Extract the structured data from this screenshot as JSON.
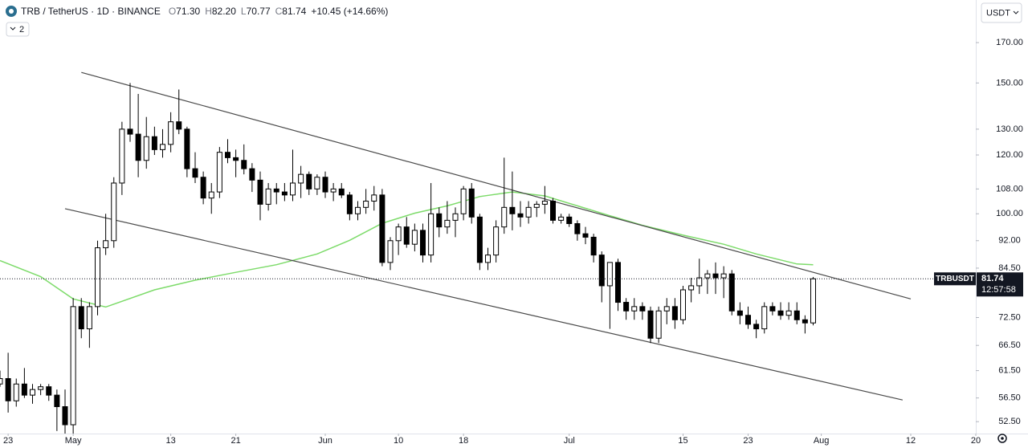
{
  "header": {
    "symbol": "TRB / TetherUS · 1D · BINANCE",
    "ohlc": [
      {
        "key": "O",
        "value": "71.30"
      },
      {
        "key": "H",
        "value": "82.20"
      },
      {
        "key": "L",
        "value": "70.77"
      },
      {
        "key": "C",
        "value": "81.74"
      }
    ],
    "change": "+10.45 (+14.66%)",
    "indicators": "2",
    "currency": "USDT"
  },
  "chart_data": {
    "type": "candlestick",
    "log_scale": true,
    "grid": false,
    "up_color": "#ffffff",
    "down_color": "#000000",
    "wick_color": "#000000",
    "xlim": [
      "04-22",
      "08-20"
    ],
    "xticks": [
      {
        "value": "04-23",
        "label": "23"
      },
      {
        "value": "05-01",
        "label": "May"
      },
      {
        "value": "05-13",
        "label": "13"
      },
      {
        "value": "05-21",
        "label": "21"
      },
      {
        "value": "06-01",
        "label": "Jun"
      },
      {
        "value": "06-10",
        "label": "10"
      },
      {
        "value": "06-18",
        "label": "18"
      },
      {
        "value": "07-01",
        "label": "Jul"
      },
      {
        "value": "07-15",
        "label": "15"
      },
      {
        "value": "07-23",
        "label": "23"
      },
      {
        "value": "08-01",
        "label": "Aug"
      },
      {
        "value": "08-12",
        "label": "12"
      },
      {
        "value": "08-20",
        "label": "20"
      }
    ],
    "ylim": [
      50.6,
      194
    ],
    "yticks": [
      {
        "value": 52.5,
        "label": "52.50"
      },
      {
        "value": 56.5,
        "label": "56.50"
      },
      {
        "value": 61.5,
        "label": "61.50"
      },
      {
        "value": 66.5,
        "label": "66.50"
      },
      {
        "value": 72.5,
        "label": "72.50"
      },
      {
        "value": 84.5,
        "label": "84.50"
      },
      {
        "value": 92,
        "label": "92.00"
      },
      {
        "value": 100,
        "label": "100.00"
      },
      {
        "value": 108,
        "label": "108.00"
      },
      {
        "value": 120,
        "label": "120.00"
      },
      {
        "value": 130,
        "label": "130.00"
      },
      {
        "value": 150,
        "label": "150.00"
      },
      {
        "value": 170,
        "label": "170.00"
      }
    ],
    "x": [
      "04-22",
      "04-23",
      "04-24",
      "04-25",
      "04-26",
      "04-27",
      "04-28",
      "04-29",
      "04-30",
      "05-01",
      "05-02",
      "05-03",
      "05-04",
      "05-05",
      "05-06",
      "05-07",
      "05-08",
      "05-09",
      "05-10",
      "05-11",
      "05-12",
      "05-13",
      "05-14",
      "05-15",
      "05-16",
      "05-17",
      "05-18",
      "05-19",
      "05-20",
      "05-21",
      "05-22",
      "05-23",
      "05-24",
      "05-25",
      "05-26",
      "05-27",
      "05-28",
      "05-29",
      "05-30",
      "05-31",
      "06-01",
      "06-02",
      "06-03",
      "06-04",
      "06-05",
      "06-06",
      "06-07",
      "06-08",
      "06-09",
      "06-10",
      "06-11",
      "06-12",
      "06-13",
      "06-14",
      "06-15",
      "06-16",
      "06-17",
      "06-18",
      "06-19",
      "06-20",
      "06-21",
      "06-22",
      "06-23",
      "06-24",
      "06-25",
      "06-26",
      "06-27",
      "06-28",
      "06-29",
      "06-30",
      "07-01",
      "07-02",
      "07-03",
      "07-04",
      "07-05",
      "07-06",
      "07-07",
      "07-08",
      "07-09",
      "07-10",
      "07-11",
      "07-12",
      "07-13",
      "07-14",
      "07-15",
      "07-16",
      "07-17",
      "07-18",
      "07-19",
      "07-20",
      "07-21",
      "07-22",
      "07-23",
      "07-24",
      "07-25",
      "07-26",
      "07-27",
      "07-28",
      "07-29",
      "07-30",
      "07-31"
    ],
    "open": [
      59,
      60,
      56,
      59,
      57,
      58,
      58.5,
      57,
      55,
      52,
      75,
      70,
      75,
      90,
      92,
      110,
      130,
      128,
      118,
      127,
      122,
      124,
      133,
      130,
      115,
      112,
      105,
      107,
      121,
      119,
      118,
      115,
      111,
      103,
      108,
      107,
      106,
      110,
      113,
      108,
      112,
      107,
      108,
      106,
      100,
      102,
      104,
      106,
      86,
      92,
      96,
      91,
      95,
      88,
      100,
      96,
      98,
      100,
      108,
      99,
      86,
      88,
      96,
      102,
      100,
      99,
      102,
      103,
      104,
      98,
      99,
      97,
      94,
      93,
      88,
      80,
      86,
      76,
      74,
      75,
      74,
      68,
      74,
      75,
      72,
      79,
      80,
      82,
      83,
      82,
      83,
      74,
      73,
      71,
      70,
      75,
      74,
      73,
      74,
      72,
      71.3
    ],
    "high": [
      61.5,
      65,
      60,
      62,
      59,
      59,
      59,
      58,
      58,
      77,
      77,
      76,
      92,
      100,
      112,
      133,
      150,
      145,
      135,
      131,
      130,
      137,
      147,
      131,
      121,
      114,
      110,
      123,
      126,
      122,
      124,
      117,
      114,
      110,
      110,
      110,
      122,
      116,
      114,
      113,
      114,
      110,
      110,
      107,
      104,
      108,
      109,
      108,
      93,
      97,
      99,
      97,
      97,
      110,
      102,
      104,
      102,
      109,
      110,
      100,
      90,
      98,
      119,
      114,
      104,
      104,
      104,
      109,
      105,
      100,
      100,
      98,
      96,
      94,
      89,
      86,
      87,
      77,
      77,
      76,
      75,
      75,
      77,
      77,
      80,
      82,
      87,
      84,
      86,
      85,
      84,
      76,
      75,
      72,
      76,
      76,
      76,
      76,
      76,
      73,
      82.2
    ],
    "low": [
      58.5,
      54,
      55,
      56.5,
      55.5,
      57,
      56,
      51,
      50,
      50,
      68,
      66,
      73,
      88,
      90,
      106,
      125,
      112,
      115,
      120,
      119,
      121,
      128,
      112,
      110,
      103,
      100,
      105,
      117,
      112,
      113,
      107,
      98,
      101,
      103,
      104,
      104,
      105,
      106,
      106,
      105,
      104,
      105,
      98,
      98,
      100,
      101,
      85,
      84,
      88,
      90,
      89,
      86,
      86,
      93,
      94,
      93,
      98,
      97,
      84,
      84,
      86,
      94,
      95,
      96,
      97,
      99,
      100,
      97,
      97,
      96,
      92,
      91,
      86,
      76,
      70,
      74,
      72,
      72,
      72,
      67,
      67,
      71,
      70,
      71,
      76,
      78,
      78,
      78,
      77,
      73,
      71,
      70,
      68,
      69,
      73,
      72,
      72,
      71,
      69,
      70.77
    ],
    "close": [
      60,
      56,
      59,
      57,
      58,
      58.5,
      57,
      55,
      52,
      75,
      70,
      75,
      90,
      92,
      110,
      130,
      128,
      118,
      127,
      122,
      124,
      133,
      130,
      115,
      112,
      105,
      107,
      121,
      119,
      118,
      115,
      111,
      103,
      108,
      107,
      106,
      110,
      113,
      108,
      112,
      107,
      108,
      106,
      100,
      102,
      104,
      106,
      86,
      92,
      96,
      91,
      95,
      88,
      100,
      96,
      98,
      100,
      108,
      99,
      86,
      88,
      96,
      102,
      100,
      99,
      102,
      103,
      104,
      98,
      99,
      97,
      94,
      93,
      88,
      80,
      86,
      76,
      74,
      75,
      74,
      68,
      74,
      75,
      72,
      79,
      80,
      82,
      83,
      82,
      83,
      74,
      73,
      71,
      70,
      75,
      74,
      73,
      74,
      72,
      71.3,
      81.74
    ],
    "ma": {
      "color": "#7ddb6a",
      "x": [
        "04-22",
        "04-27",
        "05-01",
        "05-05",
        "05-11",
        "05-16",
        "05-21",
        "05-26",
        "05-31",
        "06-04",
        "06-08",
        "06-12",
        "06-16",
        "06-20",
        "06-24",
        "06-28",
        "07-02",
        "07-06",
        "07-10",
        "07-15",
        "07-20",
        "07-24",
        "07-29",
        "07-31"
      ],
      "values": [
        86.5,
        82.3,
        76.8,
        74.9,
        79.0,
        81.4,
        83.4,
        85.4,
        88.3,
        92.1,
        97.1,
        100.2,
        102.5,
        105.5,
        107.0,
        105.7,
        102.5,
        99.4,
        96.5,
        93.6,
        91.0,
        88.3,
        85.6,
        85.4
      ]
    },
    "trendlines": [
      {
        "color": "#4a4a4a",
        "x": [
          "05-02",
          "08-12"
        ],
        "values": [
          155,
          76.8
        ]
      },
      {
        "color": "#4a4a4a",
        "x": [
          "04-30",
          "08-11"
        ],
        "values": [
          101.6,
          56.15
        ]
      }
    ],
    "price_label": {
      "symbol": "TRBUSDT",
      "value": 81.74,
      "countdown": "12:57:58"
    }
  }
}
